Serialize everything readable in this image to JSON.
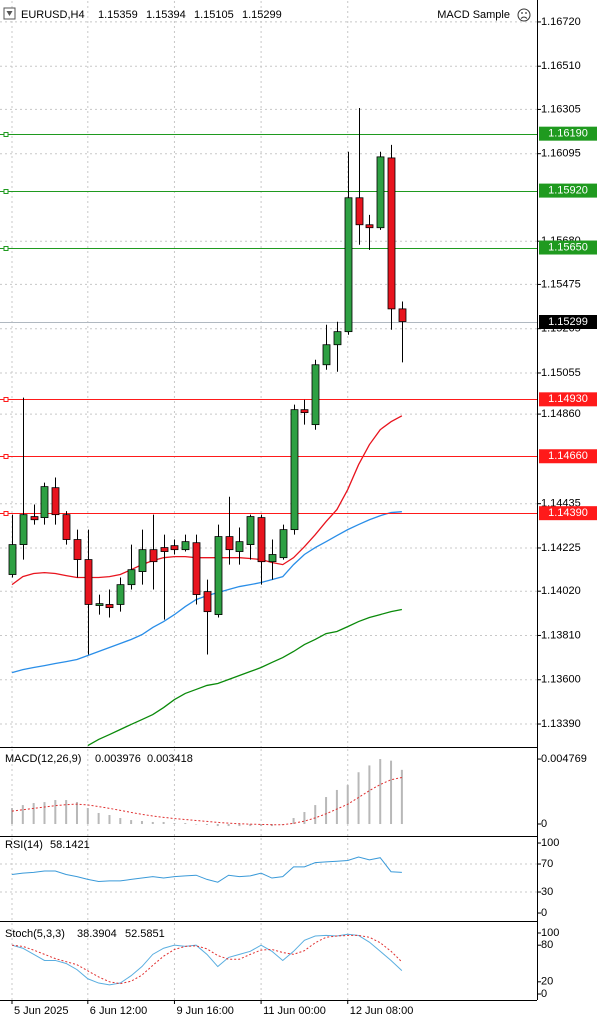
{
  "chart_data": [
    {
      "type": "candlestick",
      "title": "EURUSD,H4",
      "expert": "MACD Sample",
      "categories": [
        "5 Jun 2025",
        null,
        null,
        null,
        null,
        null,
        null,
        "6 Jun 12:00",
        null,
        null,
        null,
        null,
        null,
        null,
        null,
        "9 Jun 16:00",
        null,
        null,
        null,
        null,
        null,
        null,
        null,
        "11 Jun 00:00",
        null,
        null,
        null,
        null,
        null,
        null,
        null,
        "12 Jun 08:00",
        null,
        null,
        null,
        null,
        null
      ],
      "candles": [
        {
          "open": 1.14099,
          "high": 1.14383,
          "low": 1.14085,
          "close": 1.14241
        },
        {
          "open": 1.14241,
          "high": 1.14938,
          "low": 1.1417,
          "close": 1.14383
        },
        {
          "open": 1.14374,
          "high": 1.14431,
          "low": 1.14336,
          "close": 1.14359
        },
        {
          "open": 1.14369,
          "high": 1.14535,
          "low": 1.14336,
          "close": 1.14516
        },
        {
          "open": 1.14511,
          "high": 1.14559,
          "low": 1.14336,
          "close": 1.14383
        },
        {
          "open": 1.14383,
          "high": 1.144,
          "low": 1.14241,
          "close": 1.14265
        },
        {
          "open": 1.14265,
          "high": 1.14312,
          "low": 1.14085,
          "close": 1.1417
        },
        {
          "open": 1.1417,
          "high": 1.14312,
          "low": 1.1372,
          "close": 1.13957
        },
        {
          "open": 1.13952,
          "high": 1.14004,
          "low": 1.13909,
          "close": 1.13961
        },
        {
          "open": 1.13957,
          "high": 1.14028,
          "low": 1.13895,
          "close": 1.13942
        },
        {
          "open": 1.13957,
          "high": 1.14085,
          "low": 1.13923,
          "close": 1.14051
        },
        {
          "open": 1.14051,
          "high": 1.14241,
          "low": 1.14028,
          "close": 1.14122
        },
        {
          "open": 1.14113,
          "high": 1.14312,
          "low": 1.14051,
          "close": 1.14217
        },
        {
          "open": 1.14217,
          "high": 1.14383,
          "low": 1.14028,
          "close": 1.1416
        },
        {
          "open": 1.14227,
          "high": 1.14288,
          "low": 1.13885,
          "close": 1.14208
        },
        {
          "open": 1.14236,
          "high": 1.14265,
          "low": 1.14194,
          "close": 1.14217
        },
        {
          "open": 1.14217,
          "high": 1.14288,
          "low": 1.14208,
          "close": 1.14255
        },
        {
          "open": 1.1425,
          "high": 1.14288,
          "low": 1.13957,
          "close": 1.14004
        },
        {
          "open": 1.14018,
          "high": 1.14075,
          "low": 1.1372,
          "close": 1.13923
        },
        {
          "open": 1.13909,
          "high": 1.14336,
          "low": 1.13895,
          "close": 1.14279
        },
        {
          "open": 1.14279,
          "high": 1.14468,
          "low": 1.14146,
          "close": 1.14217
        },
        {
          "open": 1.14208,
          "high": 1.14322,
          "low": 1.14146,
          "close": 1.14255
        },
        {
          "open": 1.14241,
          "high": 1.14383,
          "low": 1.1417,
          "close": 1.14374
        },
        {
          "open": 1.14369,
          "high": 1.14383,
          "low": 1.14051,
          "close": 1.1416
        },
        {
          "open": 1.1416,
          "high": 1.14265,
          "low": 1.14075,
          "close": 1.14194
        },
        {
          "open": 1.14179,
          "high": 1.14336,
          "low": 1.1417,
          "close": 1.14312
        },
        {
          "open": 1.14312,
          "high": 1.14905,
          "low": 1.14288,
          "close": 1.14881
        },
        {
          "open": 1.14881,
          "high": 1.14928,
          "low": 1.1481,
          "close": 1.14867
        },
        {
          "open": 1.1481,
          "high": 1.15118,
          "low": 1.14786,
          "close": 1.15094
        },
        {
          "open": 1.15094,
          "high": 1.15284,
          "low": 1.1507,
          "close": 1.15189
        },
        {
          "open": 1.15189,
          "high": 1.15298,
          "low": 1.15061,
          "close": 1.15251
        },
        {
          "open": 1.15251,
          "high": 1.16104,
          "low": 1.15236,
          "close": 1.15886
        },
        {
          "open": 1.15886,
          "high": 1.16312,
          "low": 1.15663,
          "close": 1.15758
        },
        {
          "open": 1.15758,
          "high": 1.15805,
          "low": 1.15639,
          "close": 1.15744
        },
        {
          "open": 1.15744,
          "high": 1.16104,
          "low": 1.15734,
          "close": 1.1608
        },
        {
          "open": 1.16075,
          "high": 1.16137,
          "low": 1.1526,
          "close": 1.15359
        },
        {
          "open": 1.15359,
          "high": 1.15394,
          "low": 1.15105,
          "close": 1.15299
        }
      ],
      "up_color": "#2ea043",
      "down_color": "#e8141e",
      "moving_averages": [
        {
          "color": "#e8141e",
          "values": [
            1.14051,
            1.14089,
            1.14104,
            1.14108,
            1.14104,
            1.14094,
            1.14085,
            1.14085,
            1.14085,
            1.14089,
            1.14099,
            1.14122,
            1.14146,
            1.14165,
            1.14179,
            1.14184,
            1.14184,
            1.14179,
            1.14179,
            1.14179,
            1.14179,
            1.14179,
            1.14175,
            1.1417,
            1.14156,
            1.14146,
            1.14179,
            1.14231,
            1.14288,
            1.1435,
            1.14407,
            1.14502,
            1.1462,
            1.14715,
            1.14786,
            1.14824,
            1.14852
          ]
        },
        {
          "color": "#2a8ee8",
          "values": [
            1.13634,
            1.13648,
            1.13658,
            1.13667,
            1.13677,
            1.13686,
            1.13696,
            1.13715,
            1.13734,
            1.13753,
            1.13772,
            1.13791,
            1.13814,
            1.13848,
            1.13876,
            1.13909,
            1.13947,
            1.1398,
            1.13999,
            1.14013,
            1.14028,
            1.14042,
            1.14051,
            1.14061,
            1.14075,
            1.14089,
            1.14146,
            1.14194,
            1.14227,
            1.14255,
            1.14284,
            1.14312,
            1.14336,
            1.14359,
            1.14378,
            1.14393,
            1.14397
          ]
        },
        {
          "color": "#0a8a0a",
          "values": [
            null,
            null,
            null,
            null,
            null,
            null,
            null,
            1.13288,
            1.13317,
            1.1334,
            1.13364,
            1.13388,
            1.13411,
            1.13435,
            1.13468,
            1.13506,
            1.13535,
            1.13554,
            1.13573,
            1.13582,
            1.13601,
            1.1362,
            1.13639,
            1.13658,
            1.13682,
            1.13705,
            1.13734,
            1.13767,
            1.13791,
            1.13819,
            1.13829,
            1.13852,
            1.13876,
            1.13895,
            1.13909,
            1.13923,
            1.13933
          ]
        }
      ],
      "levels": [
        {
          "value": 1.1619,
          "label": "1.16190",
          "color": "#1f9a1f"
        },
        {
          "value": 1.1592,
          "label": "1.15920",
          "color": "#1f9a1f"
        },
        {
          "value": 1.1565,
          "label": "1.15650",
          "color": "#1f9a1f"
        },
        {
          "value": 1.1493,
          "label": "1.14930",
          "color": "#ff1a1a"
        },
        {
          "value": 1.1466,
          "label": "1.14660",
          "color": "#ff1a1a"
        },
        {
          "value": 1.1439,
          "label": "1.14390",
          "color": "#ff1a1a"
        }
      ],
      "ylim": [
        1.13281,
        1.16824
      ],
      "yticks": [
        {
          "value": 1.1672,
          "label": "1.16720"
        },
        {
          "value": 1.1651,
          "label": "1.16510"
        },
        1.16305,
        1.16095,
        {
          "value": 1.1568,
          "label": "1.15680"
        },
        1.15475,
        {
          "value": 1.15265,
          "label": "1.15265"
        },
        1.15055,
        {
          "value": 1.1486,
          "label": "1.14860"
        },
        1.14435,
        1.14225,
        {
          "value": 1.1402,
          "label": "1.14020"
        },
        {
          "value": 1.1381,
          "label": "1.13810"
        },
        {
          "value": 1.136,
          "label": "1.13600"
        },
        {
          "value": 1.1339,
          "label": "1.13390"
        }
      ],
      "grid": true
    },
    {
      "type": "macd",
      "title": "MACD(12,26,9)",
      "histogram": [
        0.00117,
        0.00139,
        0.00154,
        0.00161,
        0.00176,
        0.00176,
        0.00161,
        0.00117,
        0.00081,
        0.00066,
        0.00044,
        0.00029,
        0.00022,
        0.00015,
        0.00015,
        7e-05,
        7e-05,
        0,
        -7e-05,
        -0.00015,
        -0.00015,
        -0.00015,
        -0.00015,
        -0.00015,
        -0.00015,
        -7e-05,
        0.00044,
        0.00088,
        0.00139,
        0.00198,
        0.0025,
        0.00286,
        0.0038,
        0.0043,
        0.004769,
        0.00465,
        0.003976
      ],
      "signal": [
        0.00095,
        0.00105,
        0.00115,
        0.00125,
        0.00135,
        0.00142,
        0.00146,
        0.0014,
        0.00128,
        0.00115,
        0.001,
        0.00085,
        0.00071,
        0.00059,
        0.00049,
        0.0004,
        0.00033,
        0.00026,
        0.00019,
        0.00012,
        6e-05,
        2e-05,
        -1e-05,
        -3e-05,
        -5e-05,
        -5e-05,
        5e-05,
        0.00021,
        0.00045,
        0.00075,
        0.0011,
        0.00145,
        0.00195,
        0.00245,
        0.0029,
        0.00325,
        0.003418
      ],
      "histogram_color": "#b8b8b8",
      "signal_color": "#e03030",
      "ylim": [
        -0.00088,
        0.00558
      ],
      "yticks": [
        0.004769,
        0
      ]
    },
    {
      "type": "rsi",
      "title": "RSI(14)",
      "color": "#3a9ad9",
      "values": [
        55,
        57,
        58,
        60,
        60,
        55,
        52,
        48,
        45,
        46,
        46,
        48,
        50,
        52,
        50,
        52,
        53,
        54,
        48,
        44,
        54,
        52,
        53,
        57,
        50,
        52,
        66,
        66,
        72,
        73,
        74,
        75,
        80,
        76,
        79,
        59,
        58.1421
      ],
      "ylim": [
        -11.4,
        108.6
      ],
      "yticks": [
        100,
        70,
        30,
        0
      ]
    },
    {
      "type": "stochastic",
      "title": "Stoch(5,3,3)",
      "main_color": "#5aaee0",
      "signal_color": "#e03030",
      "main": [
        80,
        75,
        65,
        55,
        55,
        50,
        40,
        25,
        18,
        15,
        18,
        30,
        45,
        65,
        75,
        80,
        78,
        80,
        65,
        45,
        60,
        65,
        70,
        80,
        70,
        55,
        70,
        88,
        95,
        96,
        95,
        98,
        96,
        85,
        70,
        55,
        38.3904
      ],
      "signal": [
        80,
        78,
        72,
        65,
        58,
        53,
        48,
        38,
        28,
        20,
        17,
        21,
        31,
        47,
        62,
        73,
        78,
        79,
        74,
        63,
        57,
        57,
        65,
        72,
        73,
        68,
        65,
        71,
        84,
        93,
        95,
        96,
        96,
        93,
        84,
        70,
        52.5851
      ],
      "ylim": [
        -9.8,
        118
      ],
      "yticks": [
        100,
        80,
        20,
        0
      ]
    }
  ]
}
